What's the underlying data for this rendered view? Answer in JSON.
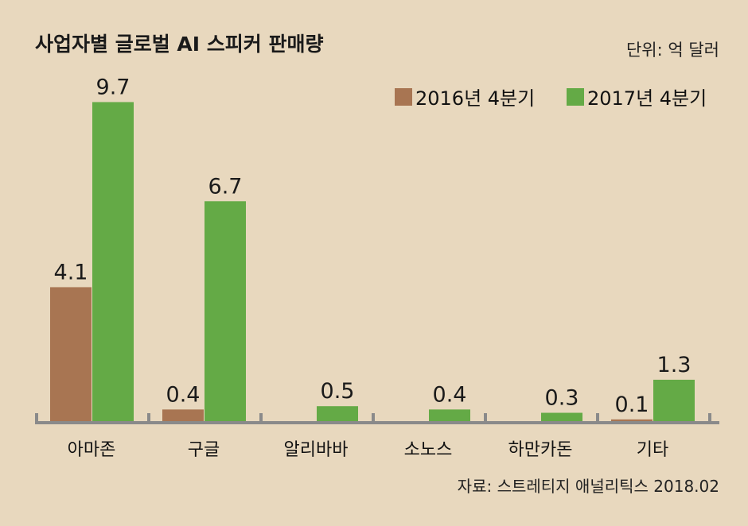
{
  "chart_data": {
    "type": "bar",
    "title": "사업자별 글로벌 AI 스피커 판매량",
    "unit_label": "단위: 억 달러",
    "categories": [
      "아마존",
      "구글",
      "알리바바",
      "소노스",
      "하만카돈",
      "기타"
    ],
    "series": [
      {
        "name": "2016년 4분기",
        "color": "#a87552",
        "values": [
          4.1,
          0.4,
          0,
          0,
          0,
          0.1
        ],
        "labels": [
          "4.1",
          "0.4",
          "",
          "",
          "",
          "0.1"
        ]
      },
      {
        "name": "2017년 4분기",
        "color": "#64aa46",
        "values": [
          9.7,
          6.7,
          0.5,
          0.4,
          0.3,
          1.3
        ],
        "labels": [
          "9.7",
          "6.7",
          "0.5",
          "0.4",
          "0.3",
          "1.3"
        ]
      }
    ],
    "ylim": [
      0,
      10.5
    ],
    "legend": "top-right",
    "grid": false,
    "axis_color": "#8a8a8a",
    "source": "자료: 스트레티지 애널리틱스 2018.02"
  }
}
